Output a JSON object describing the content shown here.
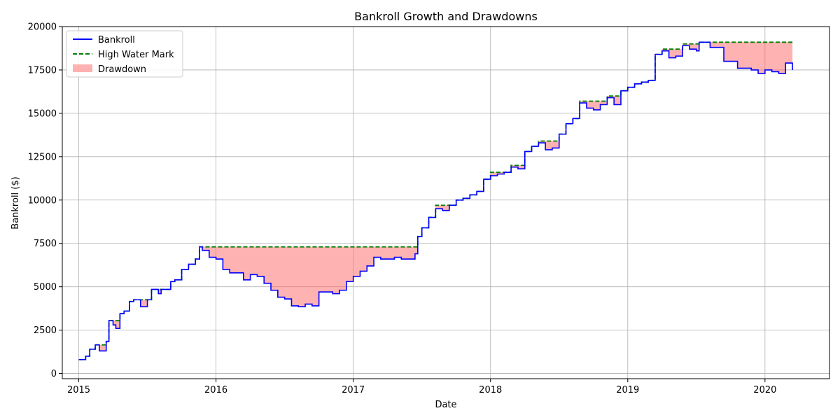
{
  "chart_data": {
    "type": "line",
    "title": "Bankroll Growth and Drawdowns",
    "xlabel": "Date",
    "ylabel": "Bankroll ($)",
    "xlim": [
      2014.88,
      2020.47
    ],
    "ylim": [
      -300,
      20000
    ],
    "x_ticks": [
      2015,
      2016,
      2017,
      2018,
      2019,
      2020
    ],
    "x_tick_labels": [
      "2015",
      "2016",
      "2017",
      "2018",
      "2019",
      "2020"
    ],
    "y_ticks": [
      0,
      2500,
      5000,
      7500,
      10000,
      12500,
      15000,
      17500,
      20000
    ],
    "y_tick_labels": [
      "0",
      "2500",
      "5000",
      "7500",
      "10000",
      "12500",
      "15000",
      "17500",
      "20000"
    ],
    "grid": true,
    "legend_position": "top-left",
    "legend": [
      "Bankroll",
      "High Water Mark",
      "Drawdown"
    ],
    "colors": {
      "bankroll": "#0000ff",
      "high_water_mark": "#008000",
      "drawdown": "#ff6666"
    },
    "series": [
      {
        "name": "Bankroll",
        "x": [
          2015.0,
          2015.05,
          2015.08,
          2015.12,
          2015.15,
          2015.2,
          2015.22,
          2015.25,
          2015.27,
          2015.3,
          2015.33,
          2015.37,
          2015.4,
          2015.45,
          2015.48,
          2015.5,
          2015.53,
          2015.58,
          2015.6,
          2015.67,
          2015.7,
          2015.75,
          2015.8,
          2015.85,
          2015.88,
          2015.9,
          2015.95,
          2016.0,
          2016.05,
          2016.1,
          2016.2,
          2016.25,
          2016.3,
          2016.35,
          2016.4,
          2016.45,
          2016.5,
          2016.55,
          2016.6,
          2016.65,
          2016.7,
          2016.75,
          2016.8,
          2016.85,
          2016.9,
          2016.95,
          2017.0,
          2017.05,
          2017.1,
          2017.15,
          2017.2,
          2017.3,
          2017.35,
          2017.45,
          2017.47,
          2017.5,
          2017.55,
          2017.6,
          2017.65,
          2017.7,
          2017.75,
          2017.8,
          2017.85,
          2017.9,
          2017.95,
          2018.0,
          2018.05,
          2018.1,
          2018.15,
          2018.2,
          2018.25,
          2018.3,
          2018.35,
          2018.4,
          2018.45,
          2018.5,
          2018.55,
          2018.6,
          2018.65,
          2018.7,
          2018.75,
          2018.8,
          2018.85,
          2018.9,
          2018.95,
          2019.0,
          2019.05,
          2019.1,
          2019.15,
          2019.2,
          2019.25,
          2019.3,
          2019.35,
          2019.4,
          2019.45,
          2019.5,
          2019.52,
          2019.6,
          2019.7,
          2019.8,
          2019.9,
          2019.95,
          2020.0,
          2020.05,
          2020.1,
          2020.15,
          2020.2
        ],
        "values": [
          800,
          1000,
          1400,
          1650,
          1300,
          1850,
          3050,
          2800,
          2600,
          3450,
          3600,
          4150,
          4250,
          3850,
          3850,
          4250,
          4850,
          4600,
          4850,
          5300,
          5400,
          6000,
          6300,
          6600,
          7300,
          7100,
          6700,
          6600,
          6000,
          5800,
          5400,
          5700,
          5600,
          5200,
          4800,
          4400,
          4300,
          3900,
          3850,
          4000,
          3900,
          4700,
          4700,
          4600,
          4800,
          5300,
          5600,
          5900,
          6200,
          6700,
          6600,
          6700,
          6600,
          6900,
          7900,
          8400,
          9000,
          9500,
          9400,
          9700,
          10000,
          10100,
          10300,
          10500,
          11200,
          11400,
          11500,
          11600,
          11900,
          11800,
          12800,
          13100,
          13300,
          12900,
          13000,
          13800,
          14400,
          14700,
          15600,
          15300,
          15200,
          15500,
          15900,
          15500,
          16300,
          16500,
          16700,
          16800,
          16900,
          18400,
          18600,
          18200,
          18300,
          18900,
          18700,
          18600,
          19100,
          18800,
          18000,
          17600,
          17500,
          17300,
          17500,
          17400,
          17300,
          17900,
          17500
        ]
      },
      {
        "name": "High Water Mark",
        "x": [
          2015.0,
          2015.05,
          2015.08,
          2015.12,
          2015.15,
          2015.2,
          2015.22,
          2015.25,
          2015.27,
          2015.3,
          2015.33,
          2015.37,
          2015.4,
          2015.45,
          2015.48,
          2015.5,
          2015.53,
          2015.58,
          2015.6,
          2015.67,
          2015.7,
          2015.75,
          2015.8,
          2015.85,
          2015.88,
          2015.9,
          2015.95,
          2016.0,
          2016.05,
          2016.1,
          2016.2,
          2016.25,
          2016.3,
          2016.35,
          2016.4,
          2016.45,
          2016.5,
          2016.55,
          2016.6,
          2016.65,
          2016.7,
          2016.75,
          2016.8,
          2016.85,
          2016.9,
          2016.95,
          2017.0,
          2017.05,
          2017.1,
          2017.15,
          2017.2,
          2017.3,
          2017.35,
          2017.45,
          2017.47,
          2017.5,
          2017.55,
          2017.6,
          2017.65,
          2017.7,
          2017.75,
          2017.8,
          2017.85,
          2017.9,
          2017.95,
          2018.0,
          2018.05,
          2018.1,
          2018.15,
          2018.2,
          2018.25,
          2018.3,
          2018.35,
          2018.4,
          2018.45,
          2018.5,
          2018.55,
          2018.6,
          2018.65,
          2018.7,
          2018.75,
          2018.8,
          2018.85,
          2018.9,
          2018.95,
          2019.0,
          2019.05,
          2019.1,
          2019.15,
          2019.2,
          2019.25,
          2019.3,
          2019.35,
          2019.4,
          2019.45,
          2019.5,
          2019.52,
          2019.6,
          2019.7,
          2019.8,
          2019.9,
          2019.95,
          2020.0,
          2020.05,
          2020.1,
          2020.15,
          2020.2
        ],
        "values": [
          800,
          1000,
          1400,
          1650,
          1650,
          1850,
          3050,
          3050,
          3050,
          3450,
          3600,
          4150,
          4250,
          4250,
          4250,
          4250,
          4850,
          4850,
          4850,
          5300,
          5400,
          6000,
          6300,
          6600,
          7300,
          7300,
          7300,
          7300,
          7300,
          7300,
          7300,
          7300,
          7300,
          7300,
          7300,
          7300,
          7300,
          7300,
          7300,
          7300,
          7300,
          7300,
          7300,
          7300,
          7300,
          7300,
          7300,
          7300,
          7300,
          7300,
          7300,
          7300,
          7300,
          7300,
          7900,
          8400,
          9000,
          9700,
          9700,
          9700,
          10000,
          10100,
          10300,
          10500,
          11200,
          11600,
          11600,
          11600,
          12000,
          12000,
          12800,
          13100,
          13400,
          13400,
          13400,
          13800,
          14400,
          14700,
          15700,
          15700,
          15700,
          15700,
          16000,
          16000,
          16300,
          16500,
          16700,
          16800,
          16900,
          18400,
          18700,
          18700,
          18700,
          19000,
          19000,
          19000,
          19100,
          19100,
          19100,
          19100,
          19100,
          19100,
          19100,
          19100,
          19100,
          19100,
          19100
        ]
      }
    ]
  }
}
